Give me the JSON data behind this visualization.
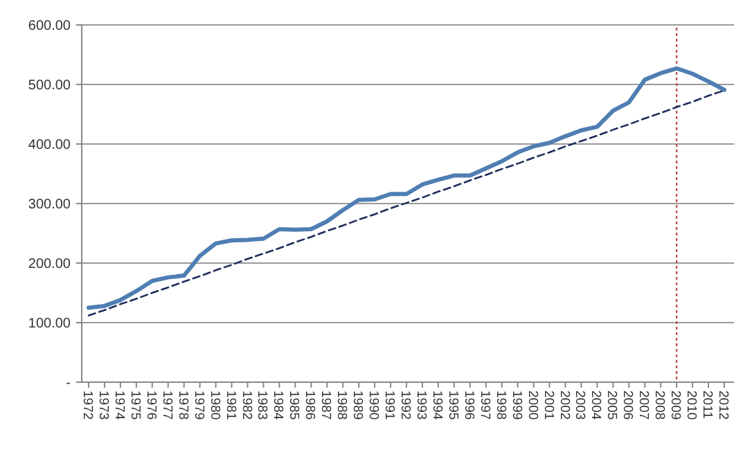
{
  "chart_data": {
    "type": "line",
    "categories": [
      "1972",
      "1973",
      "1974",
      "1975",
      "1976",
      "1977",
      "1978",
      "1979",
      "1980",
      "1981",
      "1982",
      "1983",
      "1984",
      "1985",
      "1986",
      "1987",
      "1988",
      "1989",
      "1990",
      "1991",
      "1992",
      "1993",
      "1994",
      "1995",
      "1996",
      "1997",
      "1998",
      "1999",
      "2000",
      "2001",
      "2002",
      "2003",
      "2004",
      "2005",
      "2006",
      "2007",
      "2008",
      "2009",
      "2010",
      "2011",
      "2012"
    ],
    "series": [
      {
        "color": "#4f7eb3",
        "line_style": "solid",
        "values": [
          125,
          128,
          138,
          153,
          170,
          176,
          179,
          212,
          233,
          238,
          239,
          241,
          257,
          256,
          257,
          270,
          289,
          306,
          307,
          316,
          316,
          332,
          340,
          347,
          347,
          359,
          371,
          386,
          396,
          402,
          413,
          423,
          429,
          456,
          470,
          508,
          519,
          527,
          518,
          505,
          491
        ]
      },
      {
        "color": "#1f2d5a",
        "line_style": "dashed",
        "values": [
          112,
          121,
          131,
          140,
          150,
          159,
          169,
          178,
          188,
          197,
          207,
          216,
          225,
          235,
          244,
          254,
          263,
          273,
          282,
          292,
          301,
          310,
          320,
          329,
          339,
          348,
          358,
          367,
          377,
          386,
          396,
          405,
          414,
          424,
          433,
          443,
          452,
          462,
          471,
          481,
          490
        ]
      }
    ],
    "ylim": [
      0,
      600
    ],
    "yticks": [
      {
        "value": 0,
        "label": "-"
      },
      {
        "value": 100,
        "label": "100.00"
      },
      {
        "value": 200,
        "label": "200.00"
      },
      {
        "value": 300,
        "label": "300.00"
      },
      {
        "value": 400,
        "label": "400.00"
      },
      {
        "value": 500,
        "label": "500.00"
      },
      {
        "value": 600,
        "label": "600.00"
      }
    ],
    "grid": "y",
    "ref_lines": [
      {
        "axis": "x",
        "value": "2009",
        "color": "#c0504d",
        "line_style": "dotted"
      }
    ]
  }
}
